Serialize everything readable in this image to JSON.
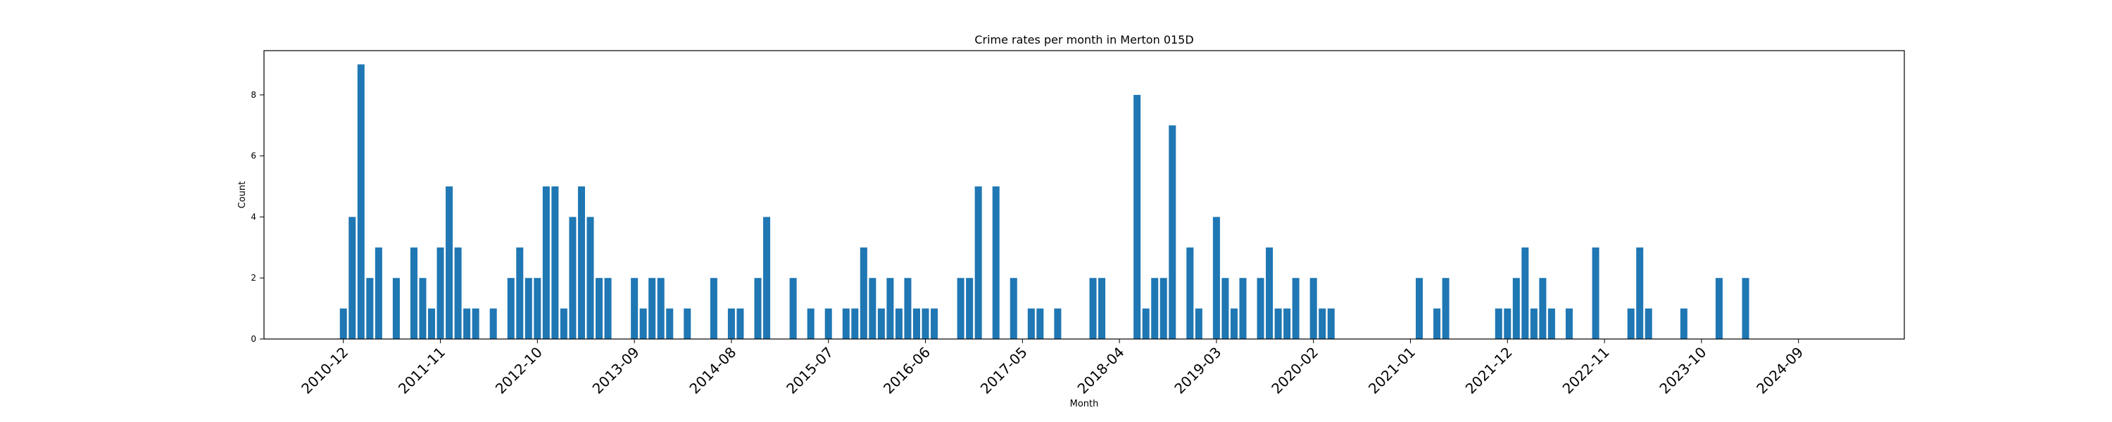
{
  "chart_data": {
    "type": "bar",
    "title": "Crime rates per month in Merton 015D",
    "xlabel": "Month",
    "ylabel": "Count",
    "ylim": [
      0,
      9.45
    ],
    "yticks": [
      0,
      2,
      4,
      6,
      8
    ],
    "grid": false,
    "bar_color": "#1f77b4",
    "x_ticks": [
      {
        "label": "2010-12",
        "x": "2010-12"
      },
      {
        "label": "2011-11",
        "x": "2011-11"
      },
      {
        "label": "2012-10",
        "x": "2012-10"
      },
      {
        "label": "2013-09",
        "x": "2013-09"
      },
      {
        "label": "2014-08",
        "x": "2014-08"
      },
      {
        "label": "2015-07",
        "x": "2015-07"
      },
      {
        "label": "2016-06",
        "x": "2016-06"
      },
      {
        "label": "2017-05",
        "x": "2017-05"
      },
      {
        "label": "2018-04",
        "x": "2018-04"
      },
      {
        "label": "2019-03",
        "x": "2019-03"
      },
      {
        "label": "2020-02",
        "x": "2020-02"
      },
      {
        "label": "2021-01",
        "x": "2021-01"
      },
      {
        "label": "2021-12",
        "x": "2021-12"
      },
      {
        "label": "2022-11",
        "x": "2022-11"
      },
      {
        "label": "2023-10",
        "x": "2023-10"
      },
      {
        "label": "2024-09",
        "x": "2024-09"
      }
    ],
    "x_range": [
      "2010-03",
      "2025-09"
    ],
    "bars": [
      {
        "x": "2010-12",
        "y": 1
      },
      {
        "x": "2011-01",
        "y": 4
      },
      {
        "x": "2011-02",
        "y": 9
      },
      {
        "x": "2011-03",
        "y": 2
      },
      {
        "x": "2011-04",
        "y": 3
      },
      {
        "x": "2011-06",
        "y": 2
      },
      {
        "x": "2011-08",
        "y": 3
      },
      {
        "x": "2011-09",
        "y": 2
      },
      {
        "x": "2011-10",
        "y": 1
      },
      {
        "x": "2011-11",
        "y": 3
      },
      {
        "x": "2011-12",
        "y": 5
      },
      {
        "x": "2012-01",
        "y": 3
      },
      {
        "x": "2012-02",
        "y": 1
      },
      {
        "x": "2012-03",
        "y": 1
      },
      {
        "x": "2012-05",
        "y": 1
      },
      {
        "x": "2012-07",
        "y": 2
      },
      {
        "x": "2012-08",
        "y": 3
      },
      {
        "x": "2012-09",
        "y": 2
      },
      {
        "x": "2012-10",
        "y": 2
      },
      {
        "x": "2012-11",
        "y": 5
      },
      {
        "x": "2012-12",
        "y": 5
      },
      {
        "x": "2013-01",
        "y": 1
      },
      {
        "x": "2013-02",
        "y": 4
      },
      {
        "x": "2013-03",
        "y": 5
      },
      {
        "x": "2013-04",
        "y": 4
      },
      {
        "x": "2013-05",
        "y": 2
      },
      {
        "x": "2013-06",
        "y": 2
      },
      {
        "x": "2013-09",
        "y": 2
      },
      {
        "x": "2013-10",
        "y": 1
      },
      {
        "x": "2013-11",
        "y": 2
      },
      {
        "x": "2013-12",
        "y": 2
      },
      {
        "x": "2014-01",
        "y": 1
      },
      {
        "x": "2014-03",
        "y": 1
      },
      {
        "x": "2014-06",
        "y": 2
      },
      {
        "x": "2014-08",
        "y": 1
      },
      {
        "x": "2014-09",
        "y": 1
      },
      {
        "x": "2014-11",
        "y": 2
      },
      {
        "x": "2014-12",
        "y": 4
      },
      {
        "x": "2015-03",
        "y": 2
      },
      {
        "x": "2015-05",
        "y": 1
      },
      {
        "x": "2015-07",
        "y": 1
      },
      {
        "x": "2015-09",
        "y": 1
      },
      {
        "x": "2015-10",
        "y": 1
      },
      {
        "x": "2015-11",
        "y": 3
      },
      {
        "x": "2015-12",
        "y": 2
      },
      {
        "x": "2016-01",
        "y": 1
      },
      {
        "x": "2016-02",
        "y": 2
      },
      {
        "x": "2016-03",
        "y": 1
      },
      {
        "x": "2016-04",
        "y": 2
      },
      {
        "x": "2016-05",
        "y": 1
      },
      {
        "x": "2016-06",
        "y": 1
      },
      {
        "x": "2016-07",
        "y": 1
      },
      {
        "x": "2016-10",
        "y": 2
      },
      {
        "x": "2016-11",
        "y": 2
      },
      {
        "x": "2016-12",
        "y": 5
      },
      {
        "x": "2017-02",
        "y": 5
      },
      {
        "x": "2017-04",
        "y": 2
      },
      {
        "x": "2017-06",
        "y": 1
      },
      {
        "x": "2017-07",
        "y": 1
      },
      {
        "x": "2017-09",
        "y": 1
      },
      {
        "x": "2018-01",
        "y": 2
      },
      {
        "x": "2018-02",
        "y": 2
      },
      {
        "x": "2018-06",
        "y": 8
      },
      {
        "x": "2018-07",
        "y": 1
      },
      {
        "x": "2018-08",
        "y": 2
      },
      {
        "x": "2018-09",
        "y": 2
      },
      {
        "x": "2018-10",
        "y": 7
      },
      {
        "x": "2018-12",
        "y": 3
      },
      {
        "x": "2019-01",
        "y": 1
      },
      {
        "x": "2019-03",
        "y": 4
      },
      {
        "x": "2019-04",
        "y": 2
      },
      {
        "x": "2019-05",
        "y": 1
      },
      {
        "x": "2019-06",
        "y": 2
      },
      {
        "x": "2019-08",
        "y": 2
      },
      {
        "x": "2019-09",
        "y": 3
      },
      {
        "x": "2019-10",
        "y": 1
      },
      {
        "x": "2019-11",
        "y": 1
      },
      {
        "x": "2019-12",
        "y": 2
      },
      {
        "x": "2020-02",
        "y": 2
      },
      {
        "x": "2020-03",
        "y": 1
      },
      {
        "x": "2020-04",
        "y": 1
      },
      {
        "x": "2021-02",
        "y": 2
      },
      {
        "x": "2021-04",
        "y": 1
      },
      {
        "x": "2021-05",
        "y": 2
      },
      {
        "x": "2021-11",
        "y": 1
      },
      {
        "x": "2021-12",
        "y": 1
      },
      {
        "x": "2022-01",
        "y": 2
      },
      {
        "x": "2022-02",
        "y": 3
      },
      {
        "x": "2022-03",
        "y": 1
      },
      {
        "x": "2022-04",
        "y": 2
      },
      {
        "x": "2022-05",
        "y": 1
      },
      {
        "x": "2022-07",
        "y": 1
      },
      {
        "x": "2022-10",
        "y": 3
      },
      {
        "x": "2023-02",
        "y": 1
      },
      {
        "x": "2023-03",
        "y": 3
      },
      {
        "x": "2023-04",
        "y": 1
      },
      {
        "x": "2023-08",
        "y": 1
      },
      {
        "x": "2023-12",
        "y": 2
      },
      {
        "x": "2024-03",
        "y": 2
      }
    ]
  }
}
